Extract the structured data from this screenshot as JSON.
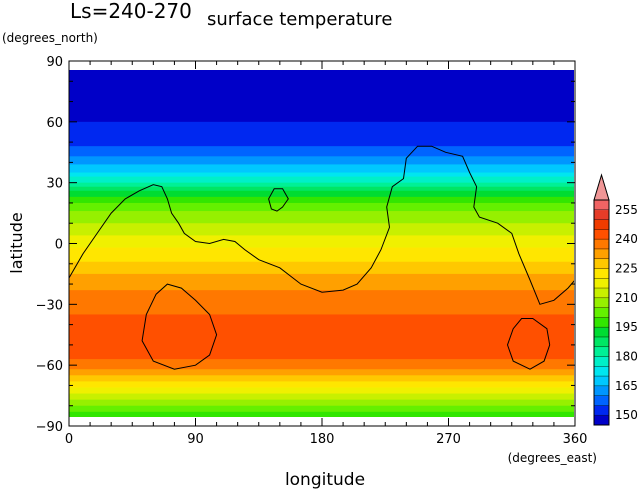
{
  "chart_data": {
    "type": "heatmap",
    "variant": "filled-contour map with overlaid topography contour line",
    "season_label": "Ls=240-270",
    "title": "surface temperature",
    "xlabel": "longitude",
    "xunit": "(degrees_east)",
    "ylabel": "latitude",
    "yunit": "(degrees_north)",
    "xlim": [
      0,
      360
    ],
    "ylim": [
      -90,
      90
    ],
    "xticks": [
      "0",
      "90",
      "180",
      "270",
      "360"
    ],
    "yticks": [
      "90",
      "60",
      "30",
      "0",
      "−30",
      "−60",
      "−90"
    ],
    "colorbar": {
      "levels": [
        {
          "value": 145,
          "color": "#0000c8",
          "label": ""
        },
        {
          "value": 150,
          "color": "#0028f0",
          "label": "150"
        },
        {
          "value": 155,
          "color": "#0064ff",
          "label": ""
        },
        {
          "value": 160,
          "color": "#0096ff",
          "label": ""
        },
        {
          "value": 165,
          "color": "#00c8ff",
          "label": "165"
        },
        {
          "value": 170,
          "color": "#00e6f0",
          "label": ""
        },
        {
          "value": 175,
          "color": "#00f0c8",
          "label": ""
        },
        {
          "value": 180,
          "color": "#00f096",
          "label": "180"
        },
        {
          "value": 185,
          "color": "#00e664",
          "label": ""
        },
        {
          "value": 190,
          "color": "#00dc32",
          "label": ""
        },
        {
          "value": 195,
          "color": "#32e600",
          "label": "195"
        },
        {
          "value": 200,
          "color": "#64f000",
          "label": ""
        },
        {
          "value": 205,
          "color": "#96f000",
          "label": ""
        },
        {
          "value": 210,
          "color": "#c8f000",
          "label": "210"
        },
        {
          "value": 215,
          "color": "#f0f000",
          "label": ""
        },
        {
          "value": 220,
          "color": "#ffe600",
          "label": ""
        },
        {
          "value": 225,
          "color": "#ffc800",
          "label": "225"
        },
        {
          "value": 230,
          "color": "#ffa000",
          "label": ""
        },
        {
          "value": 235,
          "color": "#ff7800",
          "label": ""
        },
        {
          "value": 240,
          "color": "#ff5000",
          "label": "240"
        },
        {
          "value": 245,
          "color": "#f03c00",
          "label": ""
        },
        {
          "value": 250,
          "color": "#e63c28",
          "label": ""
        },
        {
          "value": 255,
          "color": "#f06464",
          "label": "255"
        },
        {
          "value": 260,
          "color": "#f09696",
          "label": ""
        }
      ]
    },
    "field_profile": {
      "latitudes": [
        87,
        80,
        70,
        60,
        50,
        45,
        40,
        35,
        30,
        25,
        20,
        15,
        10,
        5,
        0,
        -5,
        -10,
        -15,
        -20,
        -25,
        -30,
        -35,
        -40,
        -45,
        -50,
        -55,
        -60,
        -65,
        -70,
        -75,
        -80,
        -85
      ],
      "temperatures": [
        147,
        148,
        149,
        150,
        153,
        157,
        163,
        170,
        180,
        192,
        200,
        206,
        210,
        214,
        218,
        222,
        226,
        230,
        233,
        236,
        238,
        240,
        241,
        242,
        242,
        241,
        238,
        230,
        222,
        214,
        205,
        196
      ]
    },
    "topography_contour": [
      [
        0,
        -17
      ],
      [
        10,
        -5
      ],
      [
        20,
        5
      ],
      [
        30,
        15
      ],
      [
        40,
        22
      ],
      [
        50,
        26
      ],
      [
        60,
        29
      ],
      [
        66,
        28
      ],
      [
        70,
        22
      ],
      [
        73,
        15
      ],
      [
        78,
        10
      ],
      [
        82,
        5
      ],
      [
        90,
        1
      ],
      [
        100,
        0
      ],
      [
        110,
        2
      ],
      [
        118,
        1
      ],
      [
        125,
        -3
      ],
      [
        135,
        -8
      ],
      [
        150,
        -12
      ],
      [
        165,
        -20
      ],
      [
        180,
        -24
      ],
      [
        195,
        -23
      ],
      [
        205,
        -20
      ],
      [
        215,
        -12
      ],
      [
        222,
        -3
      ],
      [
        228,
        8
      ],
      [
        226,
        18
      ],
      [
        230,
        28
      ],
      [
        238,
        32
      ],
      [
        240,
        42
      ],
      [
        248,
        48
      ],
      [
        258,
        48
      ],
      [
        268,
        45
      ],
      [
        280,
        43
      ],
      [
        285,
        35
      ],
      [
        290,
        28
      ],
      [
        288,
        18
      ],
      [
        292,
        13
      ],
      [
        305,
        10
      ],
      [
        315,
        5
      ],
      [
        320,
        -5
      ],
      [
        328,
        -18
      ],
      [
        335,
        -30
      ],
      [
        345,
        -28
      ],
      [
        355,
        -22
      ],
      [
        360,
        -18
      ]
    ],
    "closed_contours": [
      [
        [
          70,
          -20
        ],
        [
          80,
          -22
        ],
        [
          90,
          -28
        ],
        [
          100,
          -35
        ],
        [
          105,
          -45
        ],
        [
          100,
          -55
        ],
        [
          90,
          -60
        ],
        [
          75,
          -62
        ],
        [
          60,
          -58
        ],
        [
          52,
          -48
        ],
        [
          55,
          -35
        ],
        [
          62,
          -25
        ],
        [
          70,
          -20
        ]
      ],
      [
        [
          152,
          18
        ],
        [
          156,
          22
        ],
        [
          152,
          27
        ],
        [
          146,
          27
        ],
        [
          142,
          22
        ],
        [
          144,
          17
        ],
        [
          148,
          16
        ],
        [
          152,
          18
        ]
      ],
      [
        [
          330,
          -37
        ],
        [
          340,
          -42
        ],
        [
          342,
          -50
        ],
        [
          338,
          -58
        ],
        [
          328,
          -62
        ],
        [
          316,
          -58
        ],
        [
          312,
          -50
        ],
        [
          316,
          -42
        ],
        [
          322,
          -37
        ],
        [
          330,
          -37
        ]
      ]
    ],
    "grid": false,
    "legend_placement": "right"
  }
}
